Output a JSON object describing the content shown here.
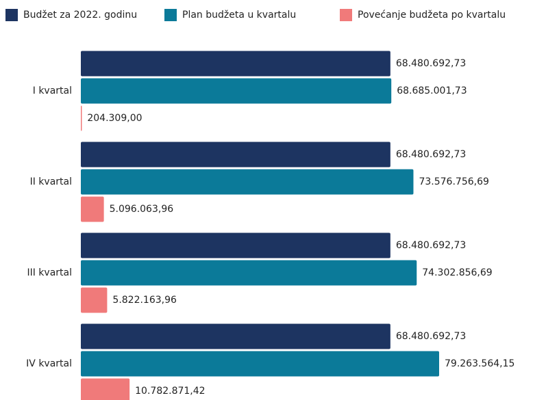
{
  "chart_data": {
    "type": "bar",
    "orientation": "horizontal",
    "categories": [
      "I kvartal",
      "II kvartal",
      "III kvartal",
      "IV kvartal"
    ],
    "series": [
      {
        "name": "Budžet za 2022. godinu",
        "color": "#1d3461",
        "values": [
          68480692.73,
          68480692.73,
          68480692.73,
          68480692.73
        ],
        "value_labels": [
          "68.480.692,73",
          "68.480.692,73",
          "68.480.692,73",
          "68.480.692,73"
        ]
      },
      {
        "name": "Plan budžeta u kvartalu",
        "color": "#0b7a99",
        "values": [
          68685001.73,
          73576756.69,
          74302856.69,
          79263564.15
        ],
        "value_labels": [
          "68.685.001,73",
          "73.576.756,69",
          "74.302.856,69",
          "79.263.564,15"
        ]
      },
      {
        "name": "Povećanje budžeta po kvartalu",
        "color": "#f07a7a",
        "values": [
          204309.0,
          5096063.96,
          5822163.96,
          10782871.42
        ],
        "value_labels": [
          "204.309,00",
          "5.096.063,96",
          "5.822.163,96",
          "10.782.871,42"
        ]
      }
    ],
    "legend": "top"
  }
}
